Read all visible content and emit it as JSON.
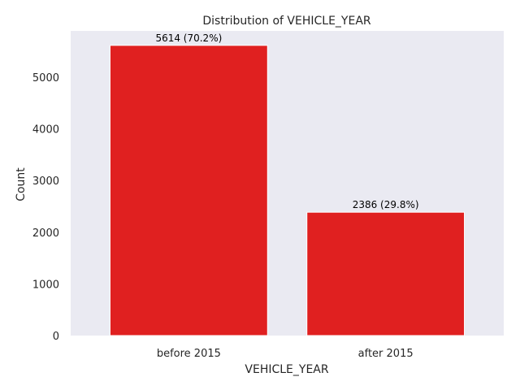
{
  "chart_data": {
    "type": "bar",
    "title": "Distribution of VEHICLE_YEAR",
    "xlabel": "VEHICLE_YEAR",
    "ylabel": "Count",
    "categories": [
      "before 2015",
      "after 2015"
    ],
    "values": [
      5614,
      2386
    ],
    "data_labels": [
      "5614 (70.2%)",
      "2386 (29.8%)"
    ],
    "ylim": [
      0,
      5894.7
    ],
    "yticks": [
      0,
      1000,
      2000,
      3000,
      4000,
      5000
    ],
    "ytick_labels": [
      "0",
      "1000",
      "2000",
      "3000",
      "4000",
      "5000"
    ],
    "grid": false,
    "legend": "none",
    "colors": {
      "bar": "#e02020",
      "bar_edge": "#ffffff",
      "plot_background": "#eaeaf2",
      "text": "#262626"
    }
  }
}
